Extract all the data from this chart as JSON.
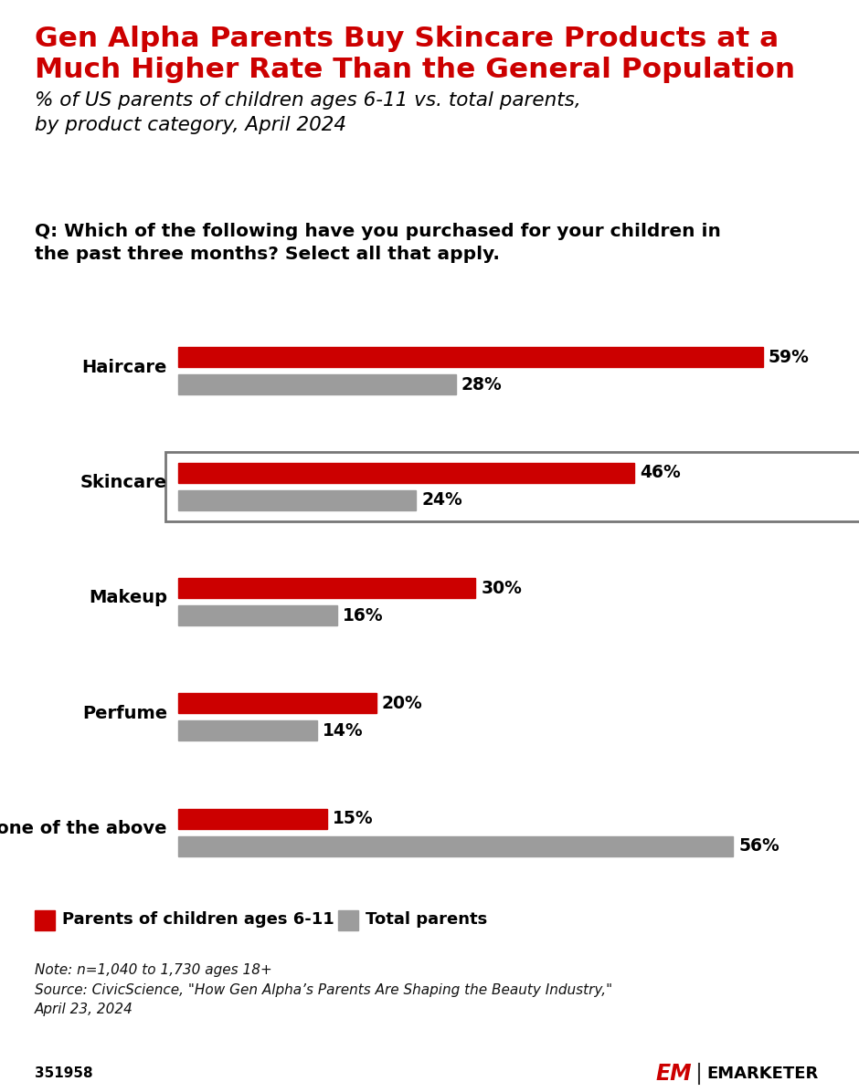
{
  "title_line1": "Gen Alpha Parents Buy Skincare Products at a",
  "title_line2": "Much Higher Rate Than the General Population",
  "subtitle": "% of US parents of children ages 6-11 vs. total parents,\nby product category, April 2024",
  "question": "Q: Which of the following have you purchased for your children in\nthe past three months? Select all that apply.",
  "categories": [
    "Haircare",
    "Skincare",
    "Makeup",
    "Perfume",
    "None of the above"
  ],
  "gen_alpha_values": [
    59,
    46,
    30,
    20,
    15
  ],
  "total_parents_values": [
    28,
    24,
    16,
    14,
    56
  ],
  "highlighted_category": "Skincare",
  "red_color": "#cc0000",
  "gray_color": "#9c9c9c",
  "legend_label_red": "Parents of children ages 6-11",
  "legend_label_gray": "Total parents",
  "note_text": "Note: n=1,040 to 1,730 ages 18+\nSource: CivicScience, \"How Gen Alpha’s Parents Are Shaping the Beauty Industry,\"\nApril 23, 2024",
  "id_text": "351958",
  "background_color": "#ffffff",
  "title_color": "#cc0000",
  "question_bg": "#e0e0e0",
  "max_value": 65
}
